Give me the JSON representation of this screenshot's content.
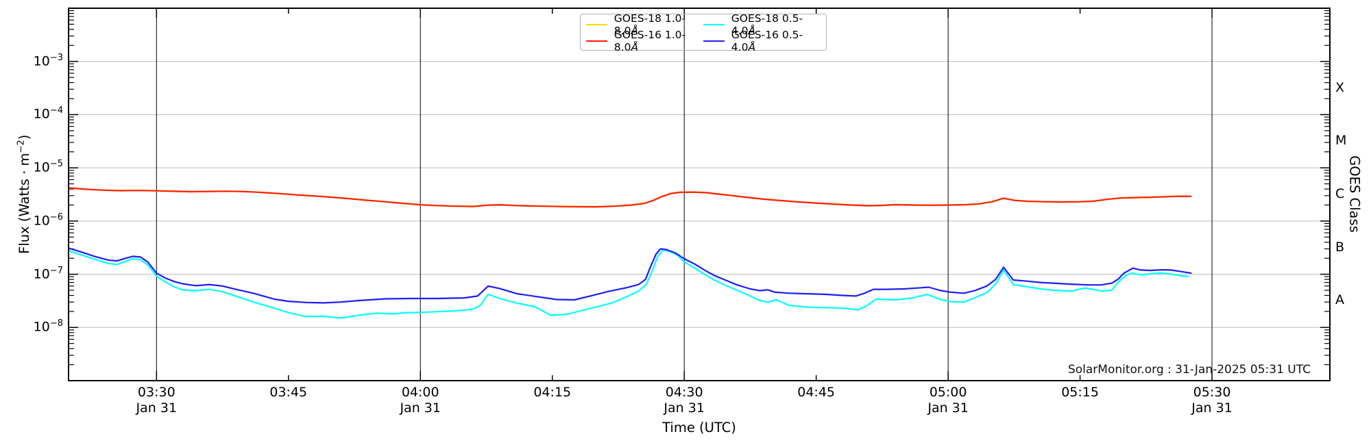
{
  "watermark": "SolarMonitor.org : 31-Jan-2025 05:31 UTC",
  "axes": {
    "x_label": "Time (UTC)",
    "y_left_label": {
      "pre": "Flux (Watts · m",
      "sup": "−2",
      "post": ")"
    },
    "y_tick_exponents": [
      -3,
      -4,
      -5,
      -6,
      -7,
      -8
    ],
    "x_ticks": [
      {
        "t": 210,
        "label": "03:30",
        "sub": "Jan 31",
        "major": true
      },
      {
        "t": 225,
        "label": "03:45",
        "sub": "",
        "major": false
      },
      {
        "t": 240,
        "label": "04:00",
        "sub": "Jan 31",
        "major": true
      },
      {
        "t": 255,
        "label": "04:15",
        "sub": "",
        "major": false
      },
      {
        "t": 270,
        "label": "04:30",
        "sub": "Jan 31",
        "major": true
      },
      {
        "t": 285,
        "label": "04:45",
        "sub": "",
        "major": false
      },
      {
        "t": 300,
        "label": "05:00",
        "sub": "Jan 31",
        "major": true
      },
      {
        "t": 315,
        "label": "05:15",
        "sub": "",
        "major": false
      },
      {
        "t": 330,
        "label": "05:30",
        "sub": "Jan 31",
        "major": true
      }
    ]
  },
  "right_axis": {
    "label": "GOES Class",
    "classes": [
      {
        "label": "X",
        "mid_exponent": -3.5
      },
      {
        "label": "M",
        "mid_exponent": -4.5
      },
      {
        "label": "C",
        "mid_exponent": -5.5
      },
      {
        "label": "B",
        "mid_exponent": -6.5
      },
      {
        "label": "A",
        "mid_exponent": -7.5
      }
    ]
  },
  "legend": {
    "items": [
      {
        "text": "GOES-18 1.0-8.0",
        "unit": "Å",
        "color": "#ffd700"
      },
      {
        "text": "GOES-18 0.5-4.0",
        "unit": "Å",
        "color": "#00ffff"
      },
      {
        "text": "GOES-16 1.0-8.0",
        "unit": "Å",
        "color": "#ff2000"
      },
      {
        "text": "GOES-16 0.5-4.0",
        "unit": "Å",
        "color": "#1c1cff"
      }
    ]
  },
  "colors": {
    "grid": "#c9c9c9",
    "vgrid": "#000000",
    "frame": "#000000"
  },
  "chart_data": {
    "type": "line",
    "title": "",
    "xlabel": "Time (UTC)",
    "ylabel": "Flux (Watts · m^-2)",
    "ylabel_right": "GOES Class",
    "x_unit": "minutes after 00:00 UTC on 31-Jan-2025",
    "y_unit": "Watts per square metre, log scale",
    "x_range": [
      200,
      343.4
    ],
    "y_range": [
      1e-09,
      0.01
    ],
    "grid": "horizontal light gray at each decade; vertical black at each half hour",
    "legend_position": "top center, two columns",
    "series": [
      {
        "name": "GOES-18 1.0-8.0Å",
        "color": "#ffd700",
        "points_ref": "GOES-16 1.0-8.0Å",
        "note": "hidden beneath the GOES-16 1.0-8.0Å red trace"
      },
      {
        "name": "GOES-18 0.5-4.0Å",
        "color": "#00ffff",
        "points": [
          [
            200,
            2.75e-07
          ],
          [
            201.5,
            2.3e-07
          ],
          [
            203,
            1.9e-07
          ],
          [
            204.5,
            1.6e-07
          ],
          [
            205.5,
            1.52e-07
          ],
          [
            206.5,
            1.75e-07
          ],
          [
            207.3,
            1.95e-07
          ],
          [
            208.2,
            1.88e-07
          ],
          [
            209,
            1.5e-07
          ],
          [
            210,
            9.2e-08
          ],
          [
            211,
            7.2e-08
          ],
          [
            212,
            5.8e-08
          ],
          [
            213,
            5.1e-08
          ],
          [
            214.5,
            4.9e-08
          ],
          [
            216,
            5.2e-08
          ],
          [
            217.5,
            4.7e-08
          ],
          [
            219,
            3.9e-08
          ],
          [
            221,
            3e-08
          ],
          [
            223.4,
            2.3e-08
          ],
          [
            225,
            1.9e-08
          ],
          [
            227,
            1.6e-08
          ],
          [
            229,
            1.62e-08
          ],
          [
            231,
            1.5e-08
          ],
          [
            233,
            1.7e-08
          ],
          [
            235,
            1.85e-08
          ],
          [
            237,
            1.8e-08
          ],
          [
            238.5,
            1.9e-08
          ],
          [
            240,
            1.92e-08
          ],
          [
            242,
            1.98e-08
          ],
          [
            244,
            2.05e-08
          ],
          [
            246,
            2.2e-08
          ],
          [
            246.8,
            2.6e-08
          ],
          [
            247.7,
            4.2e-08
          ],
          [
            249,
            3.5e-08
          ],
          [
            251,
            2.85e-08
          ],
          [
            253,
            2.45e-08
          ],
          [
            254.8,
            1.7e-08
          ],
          [
            256.5,
            1.75e-08
          ],
          [
            258.5,
            2.1e-08
          ],
          [
            260.3,
            2.5e-08
          ],
          [
            261.8,
            2.9e-08
          ],
          [
            263.5,
            3.8e-08
          ],
          [
            264.8,
            4.8e-08
          ],
          [
            265.7,
            6.5e-08
          ],
          [
            266.3,
            1.1e-07
          ],
          [
            267,
            2.2e-07
          ],
          [
            267.6,
            2.85e-07
          ],
          [
            268.3,
            2.7e-07
          ],
          [
            269.2,
            2.3e-07
          ],
          [
            270,
            1.7e-07
          ],
          [
            271.2,
            1.3e-07
          ],
          [
            272.3,
            1e-07
          ],
          [
            273.4,
            7.8e-08
          ],
          [
            274.5,
            6.4e-08
          ],
          [
            276,
            5e-08
          ],
          [
            277.5,
            3.9e-08
          ],
          [
            278.6,
            3.2e-08
          ],
          [
            279.4,
            3e-08
          ],
          [
            280.5,
            3.3e-08
          ],
          [
            281.9,
            2.6e-08
          ],
          [
            284,
            2.4e-08
          ],
          [
            286,
            2.35e-08
          ],
          [
            288,
            2.3e-08
          ],
          [
            289.8,
            2.15e-08
          ],
          [
            290.8,
            2.6e-08
          ],
          [
            291.8,
            3.4e-08
          ],
          [
            294,
            3.3e-08
          ],
          [
            296,
            3.6e-08
          ],
          [
            297.6,
            4.2e-08
          ],
          [
            299,
            3.4e-08
          ],
          [
            300.3,
            3.05e-08
          ],
          [
            301.8,
            3e-08
          ],
          [
            303,
            3.6e-08
          ],
          [
            304.4,
            4.5e-08
          ],
          [
            305.4,
            6.5e-08
          ],
          [
            306.3,
            1.2e-07
          ],
          [
            307.4,
            6.4e-08
          ],
          [
            309,
            5.8e-08
          ],
          [
            310.5,
            5.3e-08
          ],
          [
            312,
            5e-08
          ],
          [
            314,
            4.8e-08
          ],
          [
            315.5,
            5.5e-08
          ],
          [
            316.5,
            5.2e-08
          ],
          [
            317.5,
            4.8e-08
          ],
          [
            318.6,
            5e-08
          ],
          [
            319.3,
            7e-08
          ],
          [
            320.2,
            9.5e-08
          ],
          [
            320.9,
            1.05e-07
          ],
          [
            321.9,
            9.7e-08
          ],
          [
            323,
            1.02e-07
          ],
          [
            324.3,
            1.05e-07
          ],
          [
            325.4,
            1e-07
          ],
          [
            326.5,
            9.4e-08
          ],
          [
            327.3,
            9e-08
          ]
        ]
      },
      {
        "name": "GOES-16 0.5-4.0Å",
        "color": "#1c1cff",
        "points": [
          [
            200,
            3.1e-07
          ],
          [
            201.5,
            2.6e-07
          ],
          [
            203,
            2.15e-07
          ],
          [
            204.5,
            1.85e-07
          ],
          [
            205.5,
            1.78e-07
          ],
          [
            206.5,
            2e-07
          ],
          [
            207.3,
            2.17e-07
          ],
          [
            208.2,
            2.1e-07
          ],
          [
            209,
            1.7e-07
          ],
          [
            210,
            1.05e-07
          ],
          [
            211,
            8.5e-08
          ],
          [
            212,
            7.3e-08
          ],
          [
            213,
            6.6e-08
          ],
          [
            214.5,
            6.1e-08
          ],
          [
            216,
            6.4e-08
          ],
          [
            217.5,
            6e-08
          ],
          [
            219,
            5.2e-08
          ],
          [
            221,
            4.4e-08
          ],
          [
            223.4,
            3.4e-08
          ],
          [
            225,
            3.1e-08
          ],
          [
            227,
            2.95e-08
          ],
          [
            229,
            2.9e-08
          ],
          [
            231,
            3e-08
          ],
          [
            233,
            3.2e-08
          ],
          [
            236,
            3.45e-08
          ],
          [
            239,
            3.5e-08
          ],
          [
            242,
            3.5e-08
          ],
          [
            245,
            3.6e-08
          ],
          [
            246.5,
            3.9e-08
          ],
          [
            247.7,
            6e-08
          ],
          [
            249,
            5.4e-08
          ],
          [
            251,
            4.3e-08
          ],
          [
            253,
            3.85e-08
          ],
          [
            255.5,
            3.35e-08
          ],
          [
            257.5,
            3.3e-08
          ],
          [
            259.3,
            3.9e-08
          ],
          [
            261.5,
            4.8e-08
          ],
          [
            263.5,
            5.6e-08
          ],
          [
            264.8,
            6.4e-08
          ],
          [
            265.6,
            8e-08
          ],
          [
            266.1,
            1.3e-07
          ],
          [
            266.8,
            2.4e-07
          ],
          [
            267.3,
            3e-07
          ],
          [
            268,
            2.9e-07
          ],
          [
            269,
            2.5e-07
          ],
          [
            270,
            1.95e-07
          ],
          [
            271.2,
            1.55e-07
          ],
          [
            272.3,
            1.2e-07
          ],
          [
            273.4,
            9.5e-08
          ],
          [
            274.5,
            8e-08
          ],
          [
            276,
            6.3e-08
          ],
          [
            277.5,
            5.3e-08
          ],
          [
            278.6,
            4.9e-08
          ],
          [
            279.5,
            5.1e-08
          ],
          [
            280.3,
            4.6e-08
          ],
          [
            282,
            4.4e-08
          ],
          [
            284,
            4.3e-08
          ],
          [
            286,
            4.2e-08
          ],
          [
            288,
            4e-08
          ],
          [
            289.5,
            3.9e-08
          ],
          [
            290.5,
            4.4e-08
          ],
          [
            291.5,
            5.2e-08
          ],
          [
            293,
            5.2e-08
          ],
          [
            295,
            5.3e-08
          ],
          [
            296.5,
            5.5e-08
          ],
          [
            297.8,
            5.7e-08
          ],
          [
            299,
            5e-08
          ],
          [
            300.3,
            4.6e-08
          ],
          [
            301.8,
            4.4e-08
          ],
          [
            303,
            4.9e-08
          ],
          [
            304.4,
            6e-08
          ],
          [
            305.4,
            8e-08
          ],
          [
            306.3,
            1.35e-07
          ],
          [
            307.4,
            7.8e-08
          ],
          [
            309,
            7.4e-08
          ],
          [
            310.5,
            7e-08
          ],
          [
            312,
            6.8e-08
          ],
          [
            314,
            6.5e-08
          ],
          [
            316,
            6.3e-08
          ],
          [
            317.4,
            6.3e-08
          ],
          [
            318.6,
            6.8e-08
          ],
          [
            319.3,
            8e-08
          ],
          [
            320,
            1.05e-07
          ],
          [
            321,
            1.3e-07
          ],
          [
            321.9,
            1.2e-07
          ],
          [
            323,
            1.18e-07
          ],
          [
            324.3,
            1.21e-07
          ],
          [
            325.3,
            1.2e-07
          ],
          [
            326.5,
            1.12e-07
          ],
          [
            327.6,
            1.05e-07
          ]
        ]
      },
      {
        "name": "GOES-16 1.0-8.0Å",
        "color": "#ff2000",
        "points": [
          [
            200,
            4.2e-06
          ],
          [
            202,
            3.95e-06
          ],
          [
            204,
            3.8e-06
          ],
          [
            206,
            3.72e-06
          ],
          [
            208,
            3.76e-06
          ],
          [
            210,
            3.7e-06
          ],
          [
            212,
            3.62e-06
          ],
          [
            214,
            3.56e-06
          ],
          [
            216,
            3.6e-06
          ],
          [
            218,
            3.64e-06
          ],
          [
            220,
            3.58e-06
          ],
          [
            222,
            3.45e-06
          ],
          [
            224,
            3.28e-06
          ],
          [
            226,
            3.1e-06
          ],
          [
            228,
            2.95e-06
          ],
          [
            230,
            2.8e-06
          ],
          [
            232,
            2.62e-06
          ],
          [
            234,
            2.45e-06
          ],
          [
            236,
            2.3e-06
          ],
          [
            238,
            2.15e-06
          ],
          [
            240,
            2.02e-06
          ],
          [
            242,
            1.95e-06
          ],
          [
            244,
            1.9e-06
          ],
          [
            246,
            1.88e-06
          ],
          [
            247.5,
            1.98e-06
          ],
          [
            249,
            2.02e-06
          ],
          [
            251,
            1.95e-06
          ],
          [
            254,
            1.9e-06
          ],
          [
            257,
            1.86e-06
          ],
          [
            260,
            1.85e-06
          ],
          [
            262,
            1.9e-06
          ],
          [
            264,
            2e-06
          ],
          [
            265.5,
            2.15e-06
          ],
          [
            266.5,
            2.45e-06
          ],
          [
            267.5,
            2.9e-06
          ],
          [
            268.5,
            3.3e-06
          ],
          [
            269.5,
            3.48e-06
          ],
          [
            271,
            3.5e-06
          ],
          [
            272.5,
            3.42e-06
          ],
          [
            274,
            3.2e-06
          ],
          [
            275.5,
            3e-06
          ],
          [
            277,
            2.8e-06
          ],
          [
            279,
            2.58e-06
          ],
          [
            281,
            2.42e-06
          ],
          [
            283,
            2.28e-06
          ],
          [
            285,
            2.18e-06
          ],
          [
            287,
            2.08e-06
          ],
          [
            289,
            2e-06
          ],
          [
            291,
            1.94e-06
          ],
          [
            292.5,
            1.97e-06
          ],
          [
            294,
            2.03e-06
          ],
          [
            296,
            2e-06
          ],
          [
            298,
            1.98e-06
          ],
          [
            300,
            2e-06
          ],
          [
            302,
            2.03e-06
          ],
          [
            303.5,
            2.1e-06
          ],
          [
            305,
            2.3e-06
          ],
          [
            306.3,
            2.68e-06
          ],
          [
            307.5,
            2.45e-06
          ],
          [
            309,
            2.35e-06
          ],
          [
            311,
            2.3e-06
          ],
          [
            313,
            2.28e-06
          ],
          [
            315,
            2.3e-06
          ],
          [
            316.5,
            2.36e-06
          ],
          [
            318,
            2.55e-06
          ],
          [
            319.5,
            2.7e-06
          ],
          [
            321,
            2.76e-06
          ],
          [
            323,
            2.8e-06
          ],
          [
            325,
            2.88e-06
          ],
          [
            326.5,
            2.93e-06
          ],
          [
            327.6,
            2.9e-06
          ]
        ]
      }
    ]
  }
}
